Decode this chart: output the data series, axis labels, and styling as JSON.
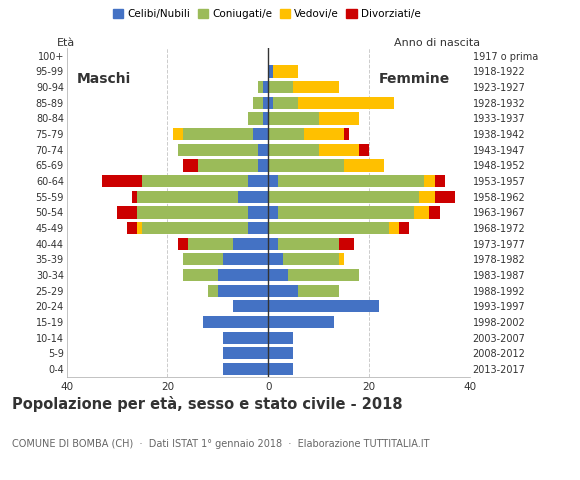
{
  "age_groups": [
    "0-4",
    "5-9",
    "10-14",
    "15-19",
    "20-24",
    "25-29",
    "30-34",
    "35-39",
    "40-44",
    "45-49",
    "50-54",
    "55-59",
    "60-64",
    "65-69",
    "70-74",
    "75-79",
    "80-84",
    "85-89",
    "90-94",
    "95-99",
    "100+"
  ],
  "birth_years": [
    "2013-2017",
    "2008-2012",
    "2003-2007",
    "1998-2002",
    "1993-1997",
    "1988-1992",
    "1983-1987",
    "1978-1982",
    "1973-1977",
    "1968-1972",
    "1963-1967",
    "1958-1962",
    "1953-1957",
    "1948-1952",
    "1943-1947",
    "1938-1942",
    "1933-1937",
    "1928-1932",
    "1923-1927",
    "1918-1922",
    "1917 o prima"
  ],
  "colors": {
    "celibe": "#4472C4",
    "coniugato": "#9BBB59",
    "vedovo": "#FFC000",
    "divorziato": "#CC0000"
  },
  "maschi": {
    "celibe": [
      9,
      9,
      9,
      13,
      7,
      10,
      10,
      9,
      7,
      4,
      4,
      6,
      4,
      2,
      2,
      3,
      1,
      1,
      1,
      0,
      0
    ],
    "coniugato": [
      0,
      0,
      0,
      0,
      0,
      2,
      7,
      8,
      9,
      21,
      22,
      20,
      21,
      12,
      16,
      14,
      3,
      2,
      1,
      0,
      0
    ],
    "vedovo": [
      0,
      0,
      0,
      0,
      0,
      0,
      0,
      0,
      0,
      1,
      0,
      0,
      0,
      0,
      0,
      2,
      0,
      0,
      0,
      0,
      0
    ],
    "divorziato": [
      0,
      0,
      0,
      0,
      0,
      0,
      0,
      0,
      2,
      2,
      4,
      1,
      8,
      3,
      0,
      0,
      0,
      0,
      0,
      0,
      0
    ]
  },
  "femmine": {
    "celibe": [
      5,
      5,
      5,
      13,
      22,
      6,
      4,
      3,
      2,
      0,
      2,
      0,
      2,
      0,
      0,
      0,
      0,
      1,
      0,
      1,
      0
    ],
    "coniugato": [
      0,
      0,
      0,
      0,
      0,
      8,
      14,
      11,
      12,
      24,
      27,
      30,
      29,
      15,
      10,
      7,
      10,
      5,
      5,
      0,
      0
    ],
    "vedovo": [
      0,
      0,
      0,
      0,
      0,
      0,
      0,
      1,
      0,
      2,
      3,
      3,
      2,
      8,
      8,
      8,
      8,
      19,
      9,
      5,
      0
    ],
    "divorziato": [
      0,
      0,
      0,
      0,
      0,
      0,
      0,
      0,
      3,
      2,
      2,
      4,
      2,
      0,
      2,
      1,
      0,
      0,
      0,
      0,
      0
    ]
  },
  "title": "Popolazione per età, sesso e stato civile - 2018",
  "subtitle": "COMUNE DI BOMBA (CH)  ·  Dati ISTAT 1° gennaio 2018  ·  Elaborazione TUTTITALIA.IT",
  "legend_labels": [
    "Celibi/Nubili",
    "Coniugati/e",
    "Vedovi/e",
    "Divorziati/e"
  ],
  "maschi_label": "Maschi",
  "femmine_label": "Femmine",
  "eta_label": "Età",
  "anno_label": "Anno di nascita",
  "xlim": 40,
  "bg_color": "#ffffff",
  "text_color": "#333333",
  "subtitle_color": "#666666",
  "grid_color": "#cccccc"
}
